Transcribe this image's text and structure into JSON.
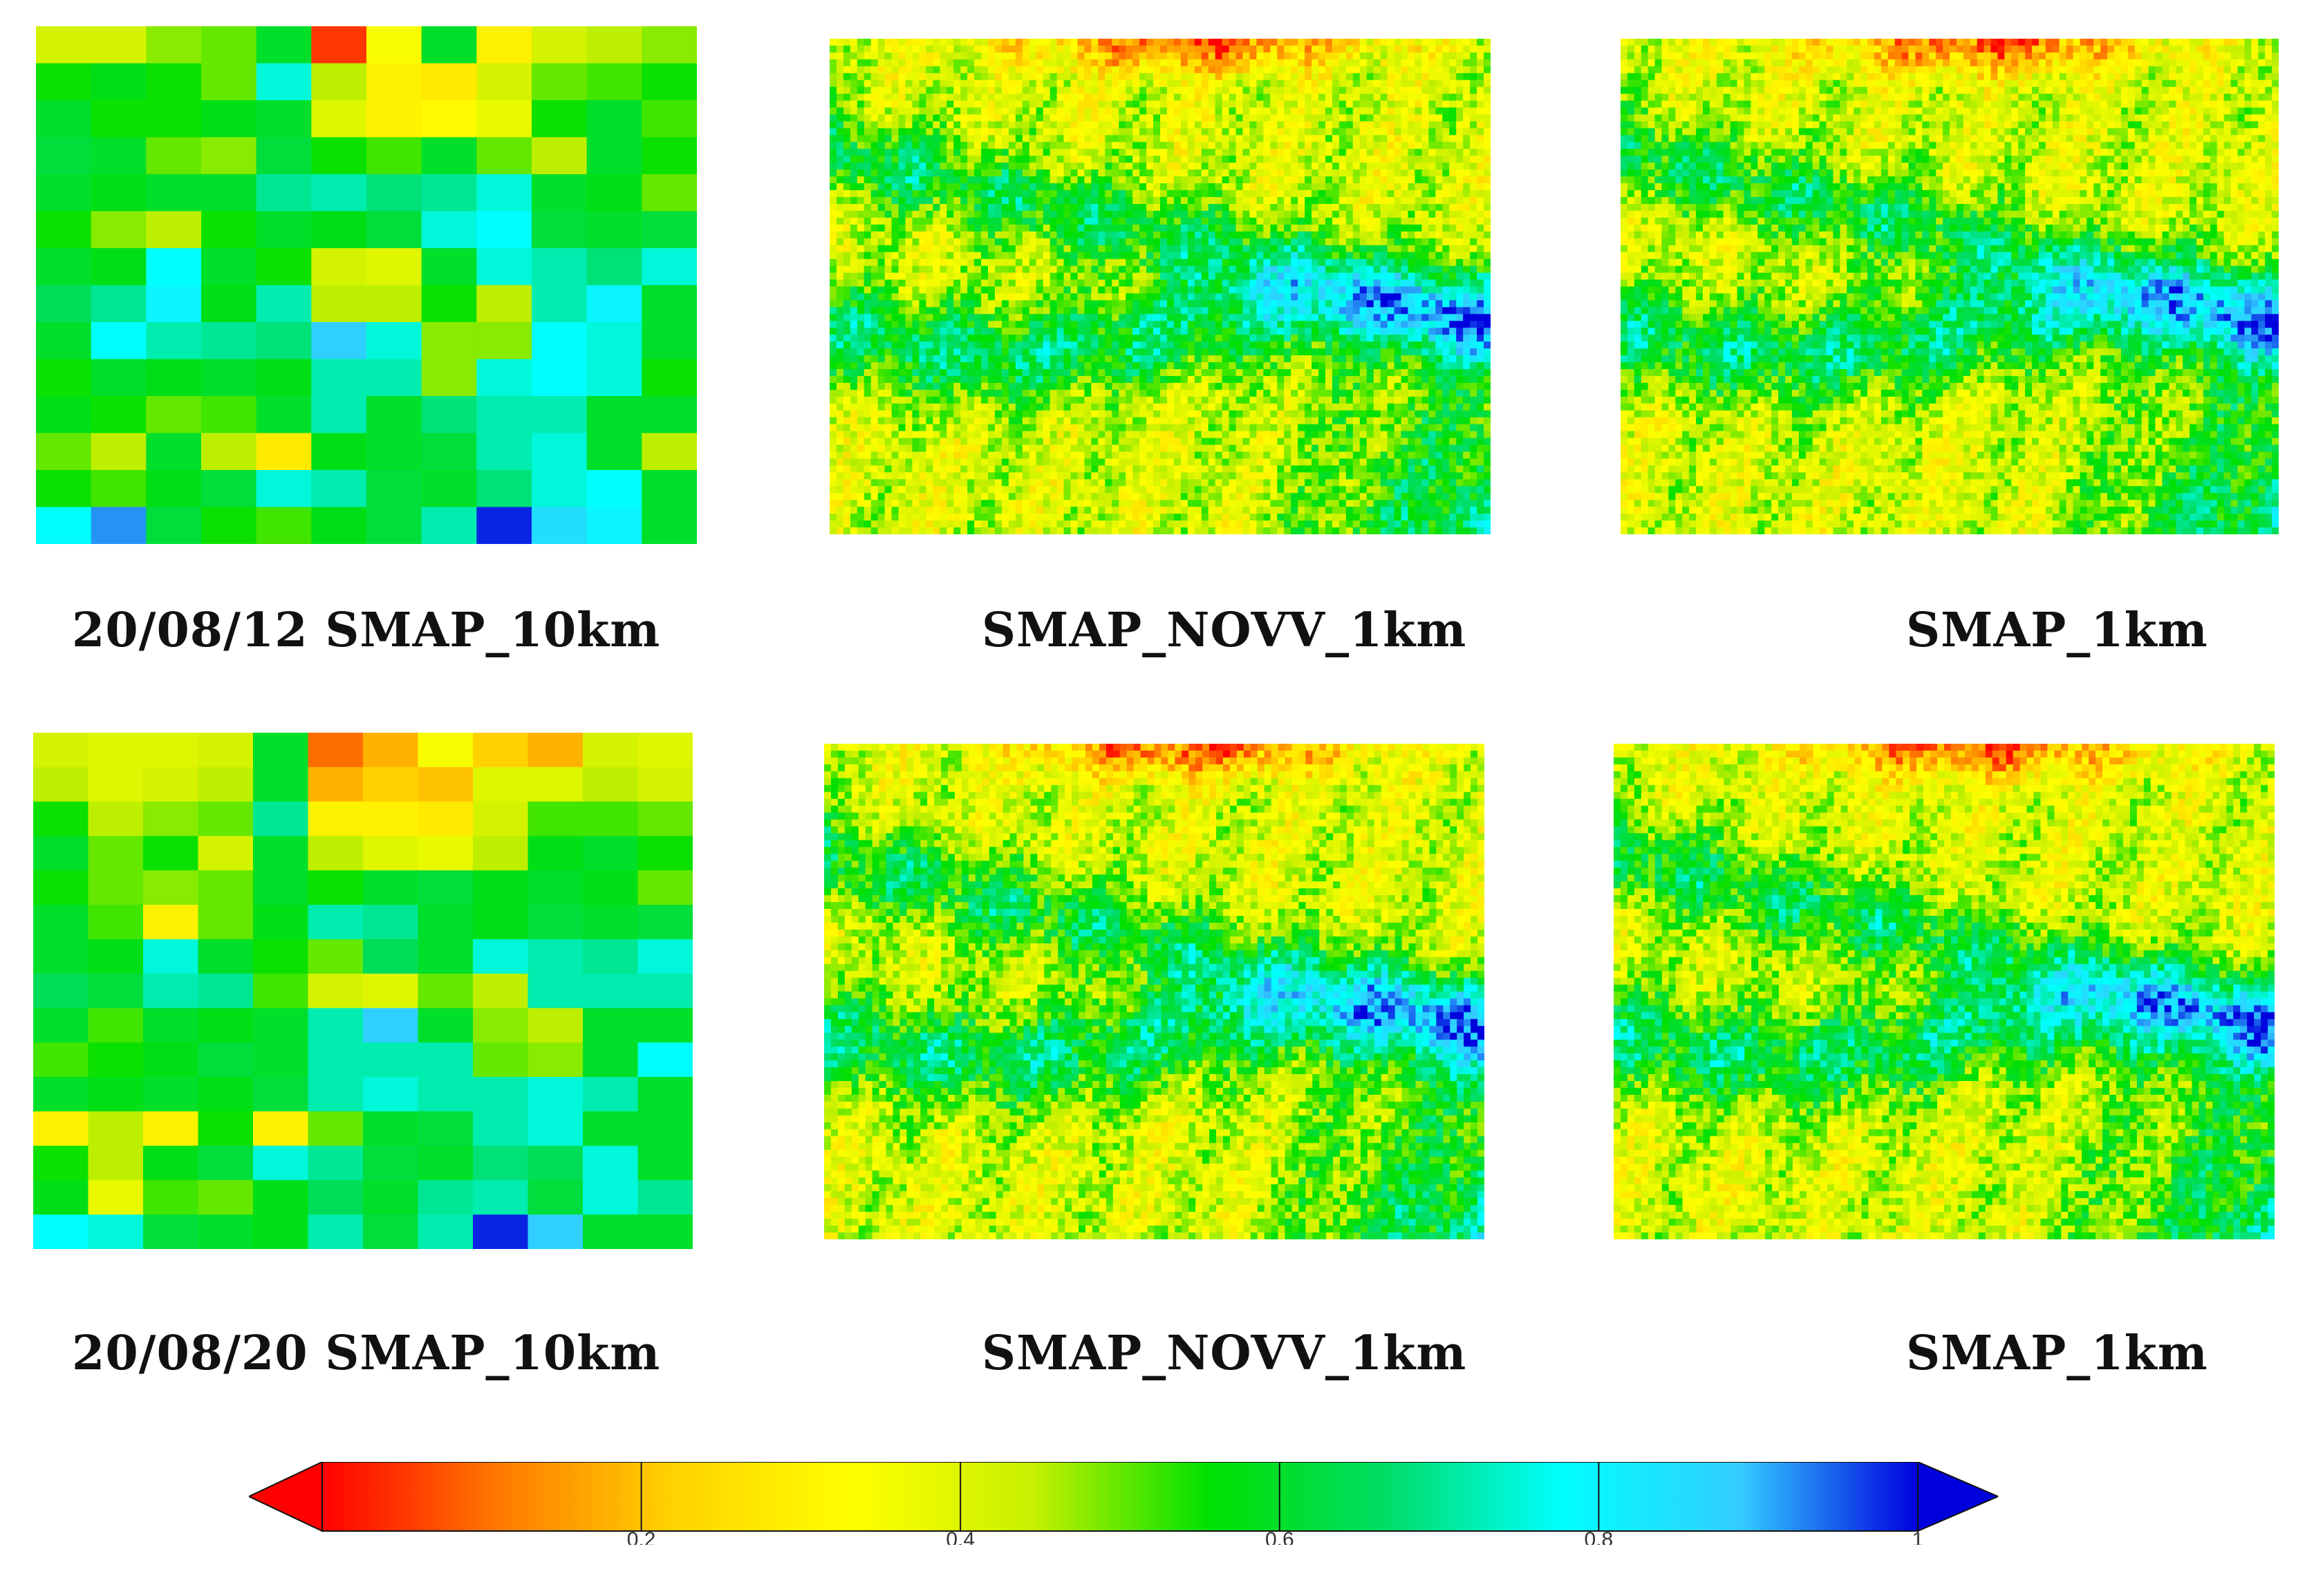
{
  "figure": {
    "rows": [
      {
        "captions": [
          "20/08/12 SMAP_10km",
          "SMAP_NOVV_1km",
          "SMAP_1km"
        ]
      },
      {
        "captions": [
          "20/08/20 SMAP_10km",
          "SMAP_NOVV_1km",
          "SMAP_1km"
        ]
      }
    ]
  },
  "chart_data": {
    "type": "heatmap",
    "colorbar": {
      "ticks": [
        0.2,
        0.4,
        0.6,
        0.8,
        1
      ],
      "tick_labels": [
        "0.2",
        "0.4",
        "0.6",
        "0.8",
        "1"
      ],
      "range": [
        0,
        1
      ],
      "extend": "both",
      "colors": [
        "#ff0000",
        "#ff7a00",
        "#ffd400",
        "#ffff00",
        "#c8f000",
        "#00e000",
        "#00dd66",
        "#00ffff",
        "#33ccff",
        "#0000dd"
      ]
    },
    "grids": [
      {
        "panel": "20/08/12 SMAP_10km",
        "values": [
          [
            0.42,
            0.42,
            0.48,
            0.5,
            0.6,
            0.05,
            0.35,
            0.6,
            0.3,
            0.42,
            0.45,
            0.48
          ],
          [
            0.55,
            0.58,
            0.55,
            0.5,
            0.75,
            0.45,
            0.3,
            0.28,
            0.42,
            0.5,
            0.52,
            0.55
          ],
          [
            0.6,
            0.55,
            0.55,
            0.58,
            0.6,
            0.4,
            0.3,
            0.32,
            0.38,
            0.55,
            0.6,
            0.52
          ],
          [
            0.62,
            0.6,
            0.5,
            0.48,
            0.62,
            0.55,
            0.52,
            0.6,
            0.5,
            0.45,
            0.6,
            0.55
          ],
          [
            0.6,
            0.58,
            0.6,
            0.6,
            0.7,
            0.72,
            0.68,
            0.7,
            0.75,
            0.6,
            0.58,
            0.5
          ],
          [
            0.55,
            0.48,
            0.45,
            0.55,
            0.6,
            0.58,
            0.62,
            0.75,
            0.78,
            0.62,
            0.6,
            0.62
          ],
          [
            0.6,
            0.58,
            0.78,
            0.6,
            0.55,
            0.42,
            0.4,
            0.6,
            0.75,
            0.72,
            0.68,
            0.75
          ],
          [
            0.65,
            0.7,
            0.8,
            0.58,
            0.72,
            0.45,
            0.45,
            0.55,
            0.45,
            0.72,
            0.8,
            0.6
          ],
          [
            0.6,
            0.78,
            0.72,
            0.7,
            0.68,
            0.88,
            0.75,
            0.48,
            0.48,
            0.78,
            0.75,
            0.6
          ],
          [
            0.55,
            0.6,
            0.58,
            0.6,
            0.58,
            0.72,
            0.72,
            0.48,
            0.75,
            0.78,
            0.75,
            0.55
          ],
          [
            0.58,
            0.55,
            0.5,
            0.52,
            0.6,
            0.72,
            0.6,
            0.68,
            0.72,
            0.72,
            0.6,
            0.6
          ],
          [
            0.5,
            0.45,
            0.6,
            0.45,
            0.28,
            0.58,
            0.6,
            0.62,
            0.72,
            0.75,
            0.6,
            0.45
          ],
          [
            0.55,
            0.52,
            0.58,
            0.62,
            0.75,
            0.72,
            0.62,
            0.6,
            0.68,
            0.75,
            0.78,
            0.6
          ],
          [
            0.78,
            0.92,
            0.62,
            0.55,
            0.52,
            0.58,
            0.62,
            0.72,
            0.98,
            0.85,
            0.8,
            0.6
          ]
        ]
      },
      {
        "panel": "20/08/20 SMAP_10km",
        "values": [
          [
            0.42,
            0.4,
            0.4,
            0.42,
            0.6,
            0.1,
            0.18,
            0.35,
            0.22,
            0.18,
            0.42,
            0.4
          ],
          [
            0.45,
            0.4,
            0.42,
            0.45,
            0.6,
            0.18,
            0.22,
            0.2,
            0.4,
            0.4,
            0.45,
            0.42
          ],
          [
            0.55,
            0.45,
            0.48,
            0.5,
            0.7,
            0.3,
            0.3,
            0.28,
            0.42,
            0.52,
            0.52,
            0.5
          ],
          [
            0.6,
            0.5,
            0.55,
            0.42,
            0.6,
            0.45,
            0.4,
            0.38,
            0.45,
            0.58,
            0.6,
            0.55
          ],
          [
            0.55,
            0.5,
            0.48,
            0.5,
            0.6,
            0.55,
            0.6,
            0.62,
            0.58,
            0.6,
            0.58,
            0.5
          ],
          [
            0.6,
            0.52,
            0.3,
            0.5,
            0.58,
            0.72,
            0.7,
            0.6,
            0.58,
            0.62,
            0.6,
            0.62
          ],
          [
            0.6,
            0.58,
            0.75,
            0.6,
            0.55,
            0.5,
            0.65,
            0.6,
            0.75,
            0.72,
            0.7,
            0.75
          ],
          [
            0.65,
            0.62,
            0.72,
            0.7,
            0.52,
            0.42,
            0.4,
            0.5,
            0.45,
            0.72,
            0.72,
            0.72
          ],
          [
            0.6,
            0.52,
            0.6,
            0.58,
            0.6,
            0.72,
            0.88,
            0.6,
            0.48,
            0.45,
            0.6,
            0.6
          ],
          [
            0.52,
            0.55,
            0.58,
            0.62,
            0.6,
            0.72,
            0.72,
            0.72,
            0.5,
            0.48,
            0.6,
            0.78
          ],
          [
            0.6,
            0.58,
            0.6,
            0.58,
            0.62,
            0.72,
            0.75,
            0.72,
            0.72,
            0.75,
            0.72,
            0.6
          ],
          [
            0.3,
            0.45,
            0.3,
            0.55,
            0.3,
            0.5,
            0.6,
            0.62,
            0.72,
            0.75,
            0.6,
            0.6
          ],
          [
            0.55,
            0.45,
            0.58,
            0.62,
            0.75,
            0.7,
            0.62,
            0.6,
            0.68,
            0.65,
            0.75,
            0.6
          ],
          [
            0.58,
            0.38,
            0.52,
            0.5,
            0.58,
            0.65,
            0.6,
            0.7,
            0.72,
            0.62,
            0.75,
            0.7
          ],
          [
            0.78,
            0.75,
            0.62,
            0.6,
            0.58,
            0.72,
            0.62,
            0.72,
            0.98,
            0.88,
            0.6,
            0.6
          ]
        ]
      }
    ]
  }
}
